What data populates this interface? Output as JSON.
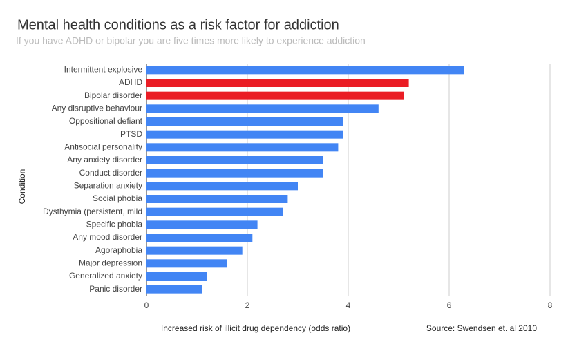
{
  "chart_data": {
    "type": "hbar",
    "title": "Mental health conditions as a risk factor for addiction",
    "subtitle": "If you have ADHD or bipolar you are five times more likely to experience addiction",
    "x_label": "Increased risk of illicit drug dependency (odds ratio)",
    "y_label": "Condition",
    "source": "Source: Swendsen et. al 2010",
    "categories": [
      "Intermittent explosive",
      "ADHD",
      "Bipolar disorder",
      "Any disruptive behaviour",
      "Oppositional defiant",
      "PTSD",
      "Antisocial personality",
      "Any anxiety disorder",
      "Conduct disorder",
      "Separation anxiety",
      "Social phobia",
      "Dysthymia (persistent, mild",
      "Specific phobia",
      "Any mood disorder",
      "Agoraphobia",
      "Major depression",
      "Generalized anxiety",
      "Panic disorder"
    ],
    "values": [
      6.3,
      5.2,
      5.1,
      4.6,
      3.9,
      3.9,
      3.8,
      3.5,
      3.5,
      3.0,
      2.8,
      2.7,
      2.2,
      2.1,
      1.9,
      1.6,
      1.2,
      1.1
    ],
    "colors": [
      "#4285f4",
      "#ea1d25",
      "#ea1d25",
      "#4285f4",
      "#4285f4",
      "#4285f4",
      "#4285f4",
      "#4285f4",
      "#4285f4",
      "#4285f4",
      "#4285f4",
      "#4285f4",
      "#4285f4",
      "#4285f4",
      "#4285f4",
      "#4285f4",
      "#4285f4",
      "#4285f4"
    ],
    "xlim": [
      0,
      8
    ],
    "xticks": [
      0,
      2,
      4,
      6,
      8
    ],
    "grid": true
  }
}
